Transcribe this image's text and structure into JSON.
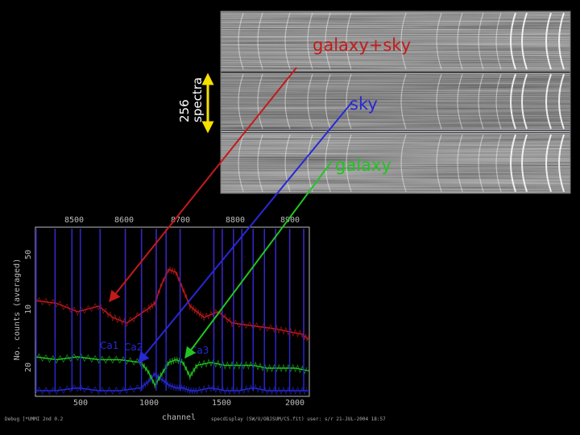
{
  "strip_labels": {
    "galaxy_sky": "galaxy+sky",
    "sky": "sky",
    "galaxy": "galaxy"
  },
  "scale_label": [
    "256",
    "spectra"
  ],
  "spectrum_plot": {
    "top_axis_ticks": [
      "8500",
      "8600",
      "8700",
      "8800",
      "8900"
    ],
    "bottom_axis_ticks": [
      "500",
      "1000",
      "1500",
      "2000"
    ],
    "left_axis_ticks": [
      "50",
      "10",
      "20"
    ],
    "ylabel": "No. counts (averaged)",
    "xlabel": "channel",
    "line_labels": [
      "Ca1",
      "Ca2",
      "Ca3"
    ],
    "footer_left": "Debug  [*UMMI 2nd 0.2",
    "footer_right": "specdisplay  (SW/U/OBJSUM/CS.fit)  user: s/r   21-JUL-2004  18:57"
  },
  "colors": {
    "galaxy_sky": "#c41a1a",
    "sky": "#2828d8",
    "galaxy": "#22c422",
    "scale_arrow": "#f5e000",
    "axes": "#bbbbbb"
  },
  "chart_data": {
    "type": "line",
    "xlabel": "channel",
    "ylabel": "No. counts (averaged)",
    "xlim": [
      150,
      2100
    ],
    "series": [
      {
        "name": "galaxy+sky",
        "x": [
          150,
          300,
          450,
          600,
          700,
          800,
          950,
          1000,
          1050,
          1100,
          1150,
          1200,
          1250,
          1300,
          1350,
          1450,
          1550,
          1700,
          1850,
          1950,
          2050,
          2100
        ],
        "y": [
          34,
          33,
          30,
          32,
          28,
          26,
          31,
          33,
          40,
          45,
          44,
          38,
          32,
          30,
          28,
          30,
          26,
          25,
          24,
          23,
          22,
          20
        ]
      },
      {
        "name": "sky",
        "x": [
          150,
          300,
          450,
          600,
          750,
          900,
          950,
          1000,
          1050,
          1100,
          1150,
          1200,
          1250,
          1300,
          1400,
          1500,
          1600,
          1700,
          1800,
          1900,
          2000,
          2100
        ],
        "y": [
          2,
          2,
          3,
          2,
          2,
          3,
          5,
          8,
          6,
          4,
          3,
          3,
          2,
          2,
          3,
          2,
          2,
          3,
          2,
          2,
          2,
          2
        ]
      },
      {
        "name": "galaxy",
        "x": [
          150,
          300,
          450,
          600,
          750,
          900,
          950,
          1000,
          1050,
          1100,
          1150,
          1200,
          1250,
          1300,
          1400,
          1500,
          1600,
          1700,
          1800,
          1900,
          2000,
          2100
        ],
        "y": [
          14,
          13,
          14,
          13,
          13,
          12,
          9,
          4,
          8,
          12,
          13,
          12,
          7,
          11,
          12,
          11,
          11,
          11,
          10,
          10,
          10,
          9
        ]
      }
    ]
  }
}
